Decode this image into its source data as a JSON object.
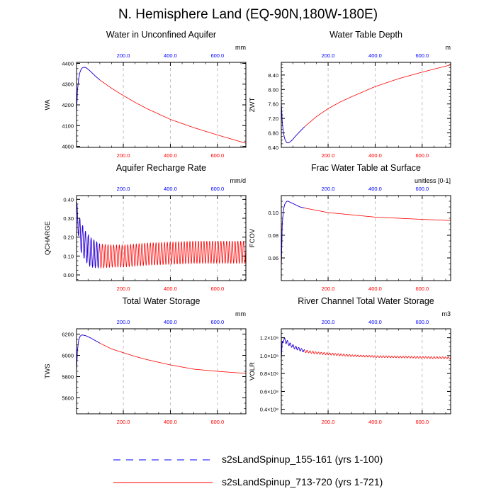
{
  "page": {
    "title": "N. Hemisphere Land (EQ-90N,180W-180E)"
  },
  "colors": {
    "red": "#ff0000",
    "blue": "#0000ff",
    "grid": "#b0b0b0",
    "axis": "#000000"
  },
  "legend": {
    "entries": [
      {
        "label": "s2sLandSpinup_155-161 (yrs 1-100)",
        "color": "#0000ff",
        "style": "dashed"
      },
      {
        "label": "s2sLandSpinup_713-720 (yrs 1-721)",
        "color": "#ff0000",
        "style": "solid"
      }
    ]
  },
  "chart_data": [
    {
      "type": "line",
      "title": "Water in Unconfined Aquifer",
      "ylabel": "WA",
      "units": "mm",
      "xlim": [
        1,
        721
      ],
      "ylim": [
        3995,
        4405
      ],
      "yticks": [
        4000,
        4100,
        4200,
        4300,
        4400
      ],
      "yticklabels": [
        "4000",
        "4100",
        "4200",
        "4300",
        "4400"
      ],
      "xticks": [
        200,
        400,
        600
      ],
      "xticklabels": [
        "200.0",
        "400.0",
        "600.0"
      ],
      "series": [
        {
          "name": "s2sLandSpinup_713-720 (yrs 1-721)",
          "color": "#ff0000",
          "x": [
            1,
            5,
            10,
            15,
            20,
            25,
            30,
            40,
            50,
            60,
            80,
            100,
            150,
            200,
            250,
            300,
            400,
            500,
            600,
            721
          ],
          "y": [
            4160,
            4270,
            4325,
            4355,
            4370,
            4378,
            4381,
            4380,
            4372,
            4362,
            4340,
            4320,
            4280,
            4245,
            4212,
            4182,
            4130,
            4090,
            4055,
            4015
          ]
        },
        {
          "name": "s2sLandSpinup_155-161 (yrs 1-100)",
          "color": "#0000ff",
          "x": [
            1,
            5,
            10,
            15,
            20,
            25,
            30,
            40,
            50,
            60,
            80,
            100
          ],
          "y": [
            4160,
            4270,
            4325,
            4355,
            4370,
            4378,
            4381,
            4380,
            4372,
            4362,
            4340,
            4320
          ]
        }
      ]
    },
    {
      "type": "line",
      "title": "Water Table Depth",
      "ylabel": "ZWT",
      "units": "m",
      "xlim": [
        1,
        721
      ],
      "ylim": [
        6.4,
        8.75
      ],
      "yticks": [
        6.4,
        6.8,
        7.2,
        7.6,
        8.0,
        8.4
      ],
      "yticklabels": [
        "6.40",
        "6.80",
        "7.20",
        "7.60",
        "8.00",
        "8.40"
      ],
      "xticks": [
        200,
        400,
        600
      ],
      "xticklabels": [
        "200.0",
        "400.0",
        "600.0"
      ],
      "series": [
        {
          "name": "s2sLandSpinup_713-720 (yrs 1-721)",
          "color": "#ff0000",
          "x": [
            1,
            5,
            10,
            15,
            20,
            25,
            30,
            40,
            50,
            60,
            80,
            100,
            150,
            200,
            250,
            300,
            400,
            500,
            600,
            721
          ],
          "y": [
            7.65,
            7.1,
            6.8,
            6.65,
            6.57,
            6.53,
            6.52,
            6.56,
            6.62,
            6.7,
            6.84,
            6.97,
            7.25,
            7.47,
            7.65,
            7.8,
            8.08,
            8.3,
            8.48,
            8.68
          ]
        },
        {
          "name": "s2sLandSpinup_155-161 (yrs 1-100)",
          "color": "#0000ff",
          "x": [
            1,
            5,
            10,
            15,
            20,
            25,
            30,
            40,
            50,
            60,
            80,
            100
          ],
          "y": [
            7.65,
            7.1,
            6.8,
            6.65,
            6.57,
            6.53,
            6.52,
            6.56,
            6.62,
            6.7,
            6.84,
            6.97
          ]
        }
      ]
    },
    {
      "type": "line",
      "title": "Aquifer Recharge Rate",
      "ylabel": "QCHARGE",
      "units": "mm/d",
      "xlim": [
        1,
        721
      ],
      "ylim": [
        -0.03,
        0.42
      ],
      "yticks": [
        0.0,
        0.1,
        0.2,
        0.3,
        0.4
      ],
      "yticklabels": [
        "0.00",
        "0.10",
        "0.20",
        "0.30",
        "0.40"
      ],
      "xticks": [
        200,
        400,
        600
      ],
      "xticklabels": [
        "200.0",
        "400.0",
        "600.0"
      ],
      "series": [
        {
          "name": "s2sLandSpinup_713-720 (yrs 1-721)",
          "color": "#ff0000",
          "seasonal": true,
          "x": [
            1,
            5,
            10,
            20,
            40,
            60,
            100,
            150,
            200,
            300,
            400,
            500,
            600,
            721
          ],
          "center": [
            0.38,
            0.3,
            0.26,
            0.2,
            0.15,
            0.12,
            0.1,
            0.1,
            0.1,
            0.11,
            0.115,
            0.12,
            0.12,
            0.12
          ],
          "amplitude": [
            0.02,
            0.05,
            0.06,
            0.08,
            0.08,
            0.08,
            0.065,
            0.06,
            0.06,
            0.06,
            0.06,
            0.06,
            0.06,
            0.06
          ]
        },
        {
          "name": "s2sLandSpinup_155-161 (yrs 1-100)",
          "color": "#0000ff",
          "seasonal": true,
          "x": [
            1,
            5,
            10,
            20,
            40,
            60,
            100
          ],
          "center": [
            0.38,
            0.3,
            0.26,
            0.2,
            0.15,
            0.12,
            0.1
          ],
          "amplitude": [
            0.02,
            0.05,
            0.06,
            0.08,
            0.08,
            0.08,
            0.065
          ]
        }
      ]
    },
    {
      "type": "line",
      "title": "Frac Water Table at Surface",
      "ylabel": "FCOV",
      "units": "unitless [0-1]",
      "xlim": [
        1,
        721
      ],
      "ylim": [
        0.04,
        0.115
      ],
      "yticks": [
        0.06,
        0.08,
        0.1
      ],
      "yticklabels": [
        "0.06",
        "0.08",
        "0.10"
      ],
      "xticks": [
        200,
        400,
        600
      ],
      "xticklabels": [
        "200.0",
        "400.0",
        "600.0"
      ],
      "series": [
        {
          "name": "s2sLandSpinup_713-720 (yrs 1-721)",
          "color": "#ff0000",
          "x": [
            1,
            5,
            10,
            15,
            20,
            25,
            30,
            40,
            60,
            80,
            100,
            150,
            200,
            300,
            400,
            500,
            600,
            721
          ],
          "y": [
            0.05,
            0.09,
            0.102,
            0.107,
            0.109,
            0.11,
            0.11,
            0.109,
            0.107,
            0.105,
            0.104,
            0.102,
            0.1,
            0.098,
            0.096,
            0.095,
            0.094,
            0.093
          ]
        },
        {
          "name": "s2sLandSpinup_155-161 (yrs 1-100)",
          "color": "#0000ff",
          "x": [
            1,
            5,
            10,
            15,
            20,
            25,
            30,
            40,
            60,
            80,
            100
          ],
          "y": [
            0.05,
            0.09,
            0.102,
            0.107,
            0.109,
            0.11,
            0.11,
            0.109,
            0.107,
            0.105,
            0.104
          ]
        }
      ]
    },
    {
      "type": "line",
      "title": "Total Water Storage",
      "ylabel": "TWS",
      "units": "mm",
      "xlim": [
        1,
        721
      ],
      "ylim": [
        5450,
        6250
      ],
      "yticks": [
        5600,
        5800,
        6000,
        6200
      ],
      "yticklabels": [
        "5600",
        "5800",
        "6000",
        "6200"
      ],
      "xticks": [
        200,
        400,
        600
      ],
      "xticklabels": [
        "200.0",
        "400.0",
        "600.0"
      ],
      "series": [
        {
          "name": "s2sLandSpinup_713-720 (yrs 1-721)",
          "color": "#ff0000",
          "x": [
            1,
            5,
            10,
            15,
            20,
            25,
            30,
            40,
            50,
            60,
            80,
            100,
            150,
            200,
            250,
            300,
            400,
            500,
            600,
            721
          ],
          "y": [
            5850,
            6050,
            6140,
            6175,
            6188,
            6192,
            6190,
            6185,
            6175,
            6165,
            6140,
            6115,
            6060,
            6025,
            5990,
            5960,
            5910,
            5870,
            5850,
            5830
          ]
        },
        {
          "name": "s2sLandSpinup_155-161 (yrs 1-100)",
          "color": "#0000ff",
          "x": [
            1,
            5,
            10,
            15,
            20,
            25,
            30,
            40,
            50,
            60,
            80,
            100
          ],
          "y": [
            5850,
            6050,
            6140,
            6175,
            6188,
            6192,
            6190,
            6185,
            6175,
            6165,
            6140,
            6115
          ]
        }
      ]
    },
    {
      "type": "line",
      "title": "River Channel Total Water Storage",
      "ylabel": "VOLR",
      "units": "m3",
      "xlim": [
        1,
        721
      ],
      "ylim": [
        0.35,
        1.3
      ],
      "yticks": [
        0.4,
        0.6,
        0.8,
        1.0,
        1.2
      ],
      "yticklabels": [
        "0.4×10⁸",
        "0.6×10⁸",
        "0.8×10⁸",
        "1.0×10⁸",
        "1.2×10⁸"
      ],
      "xticks": [
        200,
        400,
        600
      ],
      "xticklabels": [
        "200.0",
        "400.0",
        "600.0"
      ],
      "series": [
        {
          "name": "s2sLandSpinup_713-720 (yrs 1-721)",
          "color": "#ff0000",
          "seasonal": true,
          "x": [
            1,
            5,
            10,
            20,
            40,
            60,
            100,
            150,
            200,
            300,
            400,
            500,
            600,
            721
          ],
          "center": [
            0.95,
            1.15,
            1.18,
            1.16,
            1.12,
            1.09,
            1.05,
            1.03,
            1.02,
            1.0,
            0.99,
            0.985,
            0.98,
            0.975
          ],
          "amplitude": [
            0.0,
            0.03,
            0.03,
            0.025,
            0.02,
            0.018,
            0.015,
            0.012,
            0.012,
            0.01,
            0.01,
            0.01,
            0.01,
            0.01
          ]
        },
        {
          "name": "s2sLandSpinup_155-161 (yrs 1-100)",
          "color": "#0000ff",
          "seasonal": true,
          "x": [
            1,
            5,
            10,
            20,
            40,
            60,
            100
          ],
          "center": [
            0.95,
            1.15,
            1.18,
            1.16,
            1.12,
            1.09,
            1.05
          ],
          "amplitude": [
            0.0,
            0.03,
            0.03,
            0.025,
            0.02,
            0.018,
            0.015
          ]
        }
      ]
    }
  ]
}
